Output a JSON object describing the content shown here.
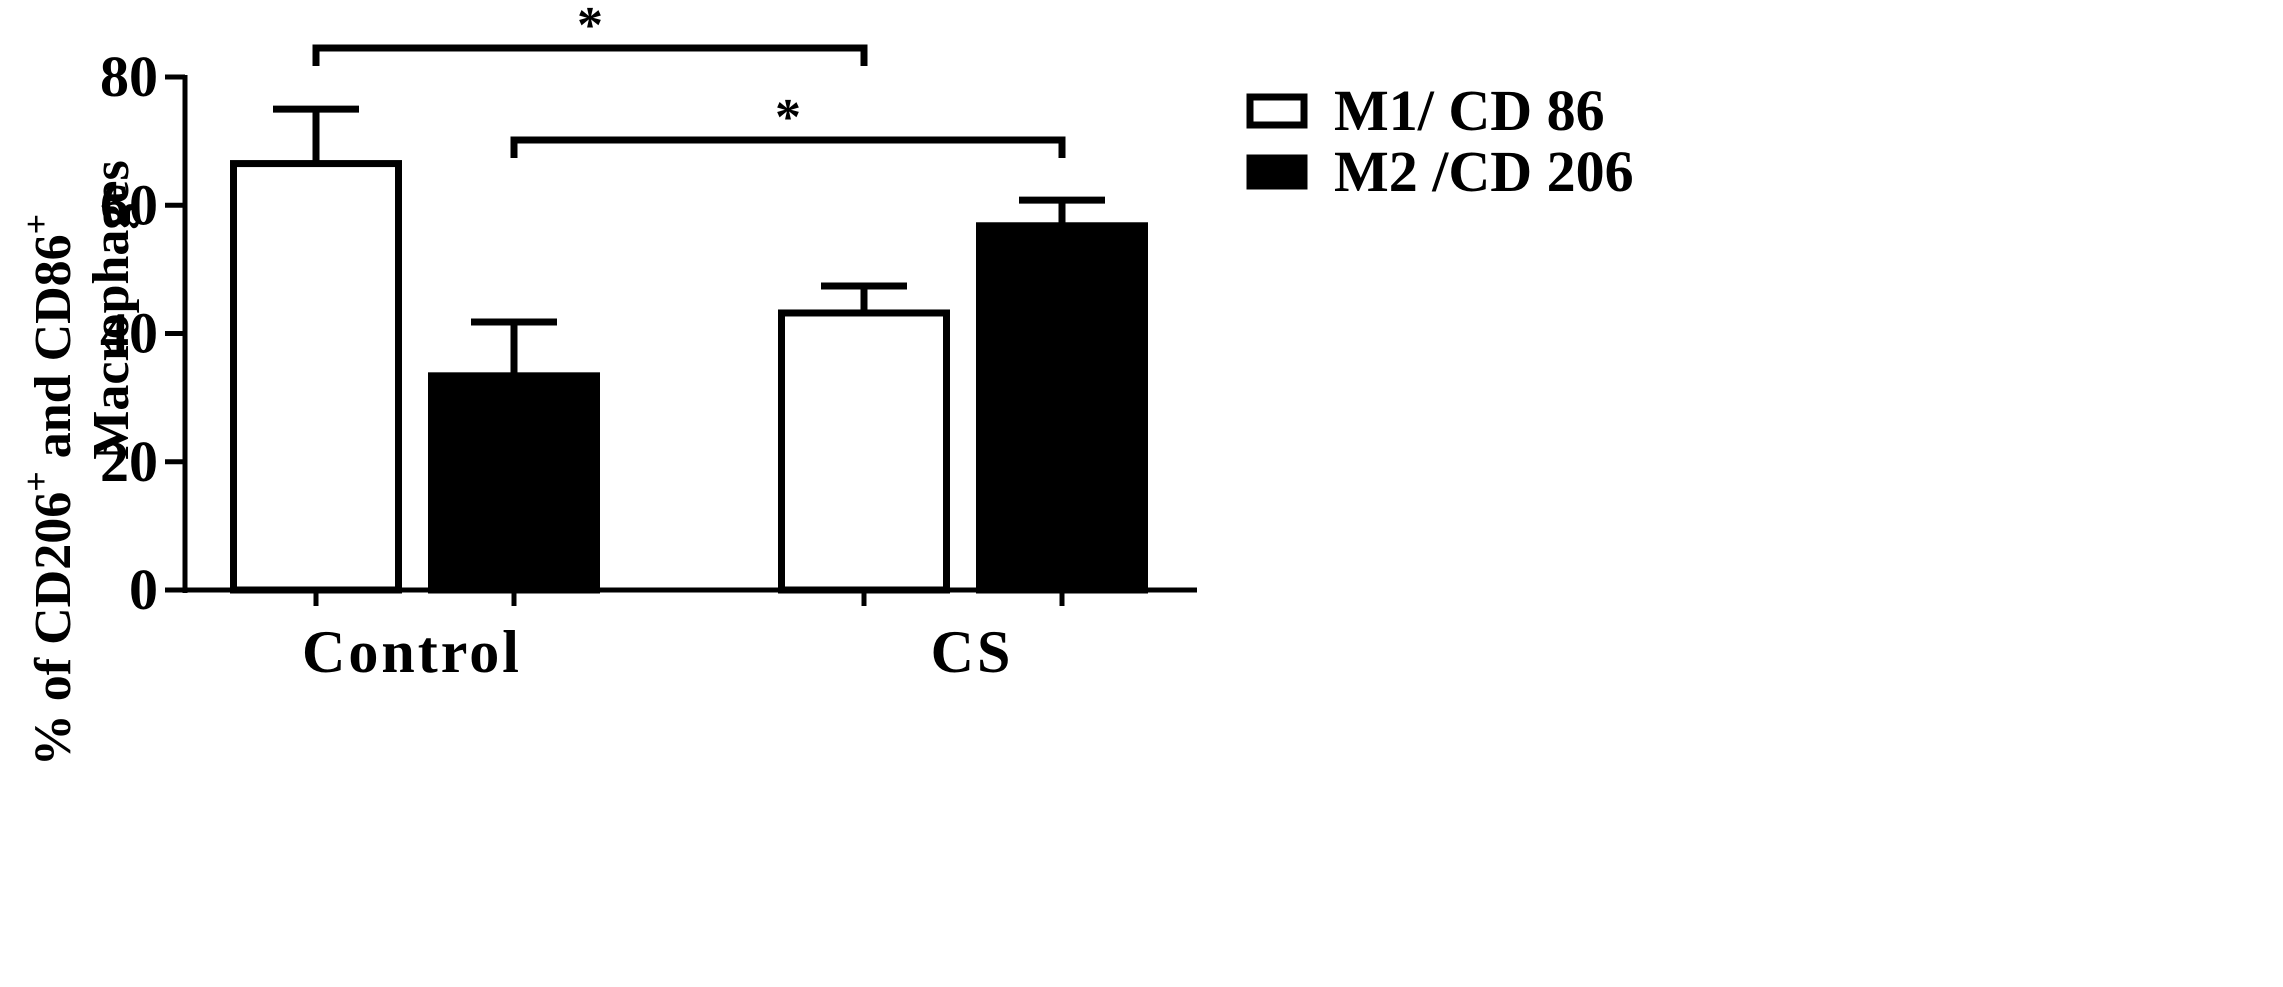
{
  "chart_data": {
    "type": "bar",
    "categories": [
      "Control",
      "CS"
    ],
    "series": [
      {
        "name": "M1/ CD 86",
        "values": [
          66.5,
          43.2
        ],
        "errors": [
          8.5,
          4.2
        ],
        "fill": "#ffffff"
      },
      {
        "name": "M2 /CD 206",
        "values": [
          33.4,
          56.8
        ],
        "errors": [
          8.4,
          4.0
        ],
        "fill": "#000000"
      }
    ],
    "ylabel": {
      "line1_parts": [
        "% of CD206",
        "+",
        " and CD86",
        "+"
      ],
      "line2": "Macrophages"
    },
    "ylim": [
      0,
      80
    ],
    "yticks": [
      0,
      20,
      40,
      60,
      80
    ],
    "legend_position": "right",
    "grid": false,
    "significance": [
      {
        "label": "*",
        "from": "Control / M1/ CD 86",
        "to": "CS / M1/ CD 86"
      },
      {
        "label": "*",
        "from": "Control / M2 /CD 206",
        "to": "CS / M2 /CD 206"
      }
    ]
  }
}
